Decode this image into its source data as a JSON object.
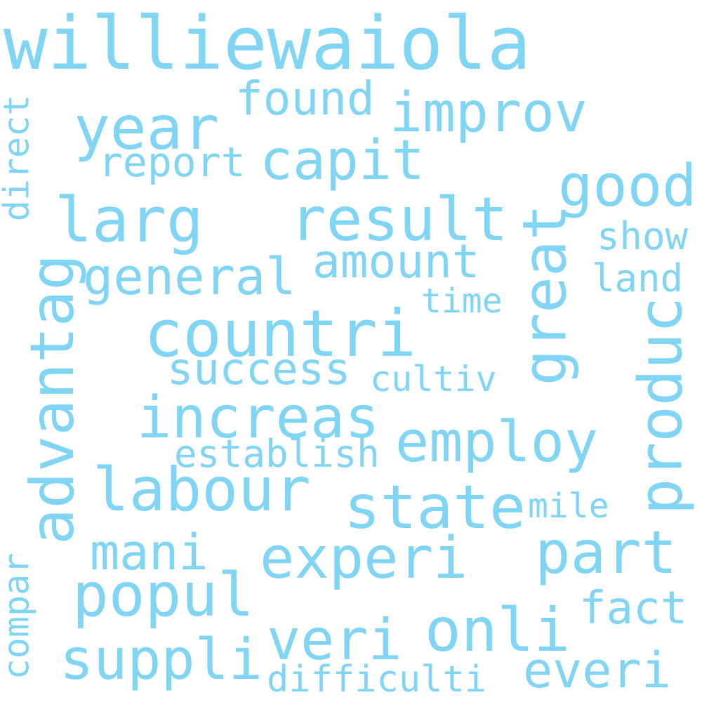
{
  "color": "#80d4f4",
  "words": [
    "williewaiola",
    "found",
    "improv",
    "year",
    "report",
    "capit",
    "direct",
    "good",
    "larg",
    "result",
    "great",
    "show",
    "amount",
    "advantag",
    "general",
    "land",
    "time",
    "countri",
    "produc",
    "success",
    "cultiv",
    "increas",
    "employ",
    "establish",
    "labour",
    "state",
    "mile",
    "mani",
    "experi",
    "part",
    "compar",
    "popul",
    "fact",
    "onli",
    "veri",
    "suppli",
    "everi",
    "difficulti"
  ]
}
